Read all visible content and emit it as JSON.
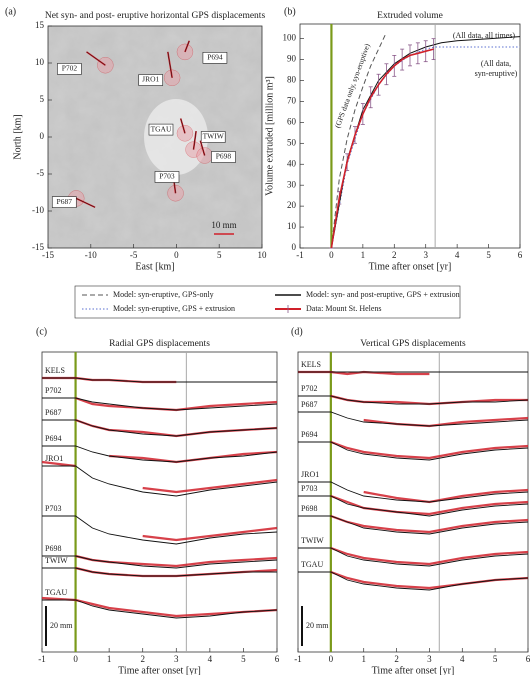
{
  "chart_data": [
    {
      "type": "map",
      "label": "(a)",
      "title": "Net syn- and post- eruptive horizontal GPS displacements",
      "xlabel": "East [km]",
      "ylabel": "North [km]",
      "xlim": [
        -15,
        10
      ],
      "xticks": [
        -15,
        -10,
        -5,
        0,
        5,
        10
      ],
      "ylim": [
        -15,
        15
      ],
      "yticks": [
        -15,
        -10,
        -5,
        0,
        5,
        10,
        15
      ],
      "arrow_color": "#d0202a",
      "circle_color": "#e8a0a8",
      "stations": [
        {
          "name": "P702",
          "x": -10.5,
          "y": 11.5,
          "dx": 2.2,
          "dy": -1.8
        },
        {
          "name": "P694",
          "x": 1.5,
          "y": 13,
          "dx": -0.5,
          "dy": -1.5
        },
        {
          "name": "JRO1",
          "x": -1,
          "y": 11.5,
          "dx": 0.5,
          "dy": -3.5
        },
        {
          "name": "TGAU",
          "x": 0.5,
          "y": 2.5,
          "dx": 0.5,
          "dy": -2
        },
        {
          "name": "TWIW",
          "x": 2.3,
          "y": 0.8,
          "dx": -0.3,
          "dy": -2.5
        },
        {
          "name": "P698",
          "x": 2.8,
          "y": -0.5,
          "dx": 0.5,
          "dy": -2
        },
        {
          "name": "P703",
          "x": -0.3,
          "y": -5.8,
          "dx": 0.2,
          "dy": -1.8
        },
        {
          "name": "P687",
          "x": -9.5,
          "y": -9.5,
          "dx": -2.2,
          "dy": 1.2
        }
      ],
      "scale_label": "10 mm"
    },
    {
      "type": "line",
      "label": "(b)",
      "title": "Extruded volume",
      "xlabel": "Time after onset [yr]",
      "ylabel": "Volume extruded [million m³]",
      "xlim": [
        -1,
        6
      ],
      "xticks": [
        -1,
        0,
        1,
        2,
        3,
        4,
        5,
        6
      ],
      "ylim": [
        0,
        107
      ],
      "yticks": [
        0,
        10,
        20,
        30,
        40,
        50,
        60,
        70,
        80,
        90,
        100
      ],
      "onset": 0,
      "onset_color": "#7a9a1a",
      "eruption_end": 3.3,
      "end_color": "#aaaaaa",
      "series": [
        {
          "name": "Model: syn-eruptive, GPS-only",
          "color": "#555555",
          "style": "dashed",
          "x": [
            0,
            0.25,
            0.5,
            0.75,
            1,
            1.25,
            1.5,
            1.75
          ],
          "values": [
            0,
            33,
            52,
            66,
            77,
            87,
            95,
            103
          ]
        },
        {
          "name": "Model: syn-eruptive, GPS + extrusion",
          "color": "#5a6fd0",
          "style": "dotted",
          "x": [
            0,
            0.5,
            1,
            1.5,
            2,
            2.5,
            3,
            3.3,
            6
          ],
          "values": [
            0,
            40,
            64,
            78,
            87,
            92,
            95,
            96,
            96
          ]
        },
        {
          "name": "Model: syn- and post-eruptive, GPS + extrusion",
          "color": "#111111",
          "style": "solid",
          "x": [
            0,
            0.5,
            1,
            1.5,
            2,
            2.5,
            3,
            3.5,
            4,
            5,
            6
          ],
          "values": [
            0,
            42,
            66,
            80,
            88,
            93,
            96,
            98,
            99,
            100,
            101
          ]
        },
        {
          "name": "Data: Mount St. Helens",
          "color": "#d0202a",
          "style": "errorbar",
          "x": [
            0,
            0.25,
            0.5,
            0.75,
            1,
            1.25,
            1.5,
            1.75,
            2,
            2.25,
            2.5,
            2.75,
            3,
            3.25
          ],
          "values": [
            0,
            24,
            41,
            54,
            64,
            72,
            78,
            83,
            87,
            90,
            92,
            93,
            94,
            95
          ],
          "errors": [
            0,
            3,
            4,
            4,
            5,
            5,
            5,
            5,
            5,
            5,
            5,
            5,
            5,
            5
          ]
        }
      ],
      "annotations": [
        "(All data, all times)",
        "(All data,",
        "syn-eruptive)",
        "(GPS data only, syn-eruptive)"
      ]
    },
    {
      "type": "stations",
      "label": "(c)",
      "title": "Radial GPS displacements",
      "xlabel": "Time after onset [yr]",
      "xlim": [
        -1,
        6
      ],
      "xticks": [
        -1,
        0,
        1,
        2,
        3,
        4,
        5,
        6
      ],
      "ylim": [
        0,
        150
      ],
      "onset": 0,
      "onset_color": "#7a9a1a",
      "eruption_end": 3.3,
      "end_color": "#aaaaaa",
      "data_color": "#d0202a",
      "model_color": "#111111",
      "scale_bar": {
        "value": 20,
        "label": "20 mm"
      },
      "x": [
        -1,
        0,
        0.5,
        1,
        2,
        3,
        4,
        5,
        6
      ],
      "stations": [
        {
          "name": "KELS",
          "values": [
            137,
            137,
            136,
            136,
            135,
            135,
            null,
            null,
            null
          ],
          "model": [
            137,
            137,
            136,
            136,
            135,
            135,
            135,
            135,
            135
          ]
        },
        {
          "name": "P702",
          "values": [
            null,
            127,
            124,
            123,
            122,
            121,
            123,
            124,
            125
          ],
          "model": [
            127,
            127,
            125,
            124,
            122,
            121,
            122,
            123,
            124
          ]
        },
        {
          "name": "P687",
          "values": [
            null,
            116,
            113,
            111,
            110,
            108,
            110,
            111,
            112
          ],
          "model": [
            116,
            116,
            113,
            111,
            109,
            108,
            110,
            111,
            112
          ]
        },
        {
          "name": "P694",
          "values": [
            null,
            103,
            null,
            98,
            97,
            95,
            97,
            99,
            100
          ],
          "model": [
            103,
            103,
            100,
            98,
            96,
            95,
            97,
            98,
            100
          ]
        },
        {
          "name": "JRO1",
          "values": [
            95,
            93,
            null,
            null,
            82,
            80,
            82,
            84,
            86
          ],
          "model": [
            93,
            93,
            87,
            84,
            80,
            78,
            81,
            83,
            85
          ]
        },
        {
          "name": "P703",
          "values": [
            null,
            null,
            null,
            null,
            58,
            56,
            58,
            60,
            62
          ],
          "model": [
            68,
            68,
            62,
            59,
            56,
            54,
            57,
            59,
            60
          ]
        },
        {
          "name": "P698",
          "values": [
            null,
            48,
            46,
            45,
            44,
            43,
            45,
            46,
            47
          ],
          "model": [
            48,
            48,
            46,
            45,
            43,
            42,
            44,
            45,
            46
          ]
        },
        {
          "name": "TWIW",
          "values": [
            null,
            42,
            40,
            39,
            38,
            38,
            39,
            40,
            41
          ],
          "model": [
            42,
            42,
            40,
            39,
            38,
            38,
            39,
            40,
            40
          ]
        },
        {
          "name": "TGAU",
          "values": [
            27,
            26,
            24,
            22,
            20,
            18,
            19,
            20,
            21
          ],
          "model": [
            26,
            26,
            23,
            21,
            19,
            17,
            18,
            20,
            21
          ]
        }
      ]
    },
    {
      "type": "stations",
      "label": "(d)",
      "title": "Vertical GPS displacements",
      "xlabel": "Time after onset [yr]",
      "xlim": [
        -1,
        6
      ],
      "xticks": [
        -1,
        0,
        1,
        2,
        3,
        4,
        5,
        6
      ],
      "ylim": [
        0,
        150
      ],
      "onset": 0,
      "onset_color": "#7a9a1a",
      "eruption_end": 3.3,
      "end_color": "#aaaaaa",
      "data_color": "#d0202a",
      "model_color": "#111111",
      "scale_bar": {
        "value": 20,
        "label": "20 mm"
      },
      "x": [
        -1,
        0,
        0.5,
        1,
        2,
        3,
        4,
        5,
        6
      ],
      "stations": [
        {
          "name": "KELS",
          "values": [
            140,
            140,
            139,
            140,
            139,
            139,
            null,
            null,
            null
          ],
          "model": [
            140,
            140,
            140,
            140,
            140,
            140,
            140,
            140,
            140
          ]
        },
        {
          "name": "P702",
          "values": [
            null,
            128,
            126,
            125,
            125,
            124,
            125,
            126,
            126
          ],
          "model": [
            128,
            128,
            126,
            125,
            124,
            124,
            125,
            125,
            126
          ]
        },
        {
          "name": "P687",
          "values": [
            null,
            120,
            null,
            116,
            114,
            113,
            115,
            116,
            117
          ],
          "model": [
            120,
            120,
            117,
            115,
            114,
            113,
            114,
            115,
            116
          ]
        },
        {
          "name": "P694",
          "values": [
            null,
            105,
            102,
            100,
            98,
            97,
            100,
            102,
            103
          ],
          "model": [
            105,
            105,
            101,
            99,
            97,
            96,
            99,
            101,
            102
          ]
        },
        {
          "name": "JRO1",
          "values": [
            null,
            null,
            null,
            80,
            77,
            75,
            78,
            80,
            81
          ],
          "model": [
            85,
            85,
            81,
            78,
            76,
            75,
            77,
            79,
            80
          ]
        },
        {
          "name": "P703",
          "values": [
            null,
            78,
            75,
            72,
            70,
            69,
            72,
            74,
            75
          ],
          "model": [
            78,
            78,
            74,
            72,
            70,
            68,
            71,
            73,
            74
          ]
        },
        {
          "name": "P698",
          "values": [
            null,
            68,
            65,
            63,
            61,
            60,
            63,
            65,
            66
          ],
          "model": [
            68,
            68,
            65,
            62,
            60,
            59,
            62,
            64,
            65
          ]
        },
        {
          "name": "TWIW",
          "values": [
            null,
            52,
            49,
            47,
            45,
            44,
            47,
            49,
            50
          ],
          "model": [
            52,
            52,
            48,
            46,
            44,
            43,
            46,
            48,
            49
          ]
        },
        {
          "name": "TGAU",
          "values": [
            null,
            40,
            37,
            35,
            33,
            32,
            34,
            36,
            37
          ],
          "model": [
            40,
            40,
            36,
            34,
            32,
            31,
            34,
            36,
            37
          ]
        }
      ]
    }
  ]
}
